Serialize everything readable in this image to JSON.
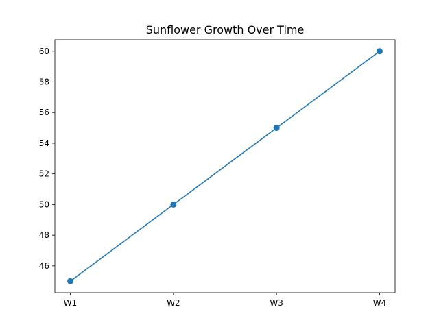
{
  "chart_data": {
    "type": "line",
    "title": "Sunflower Growth Over Time",
    "xlabel": "",
    "ylabel": "",
    "categories": [
      "W1",
      "W2",
      "W3",
      "W4"
    ],
    "series": [
      {
        "values": [
          45,
          50,
          55,
          60
        ],
        "color": "#1f77b4",
        "marker": "circle"
      }
    ],
    "ylim": [
      44.25,
      60.75
    ],
    "yticks": [
      "46",
      "48",
      "50",
      "52",
      "54",
      "56",
      "58",
      "60"
    ],
    "grid": false,
    "legend": "none"
  }
}
